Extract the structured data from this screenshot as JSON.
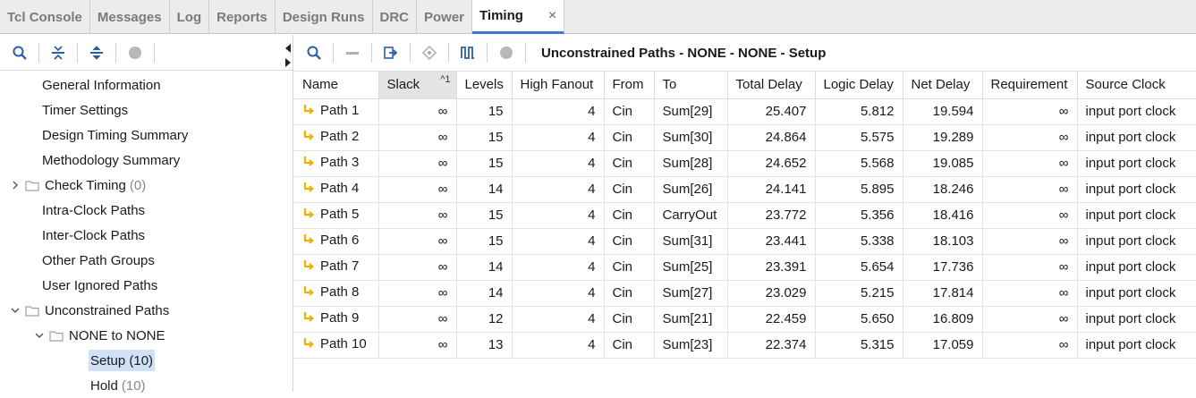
{
  "tabs": [
    {
      "label": "Tcl Console"
    },
    {
      "label": "Messages"
    },
    {
      "label": "Log"
    },
    {
      "label": "Reports"
    },
    {
      "label": "Design Runs"
    },
    {
      "label": "DRC"
    },
    {
      "label": "Power"
    },
    {
      "label": "Timing",
      "close": "×"
    }
  ],
  "tree": {
    "general_information": "General Information",
    "timer_settings": "Timer Settings",
    "design_timing_summary": "Design Timing Summary",
    "methodology_summary": "Methodology Summary",
    "check_timing": "Check Timing",
    "check_timing_count": "(0)",
    "intra_clock": "Intra-Clock Paths",
    "inter_clock": "Inter-Clock Paths",
    "other_groups": "Other Path Groups",
    "user_ignored": "User Ignored Paths",
    "unconstrained": "Unconstrained Paths",
    "none_to_none": "NONE to NONE",
    "setup": "Setup (10)",
    "hold": "Hold",
    "hold_count": "(10)"
  },
  "panel_title": "Unconstrained Paths - NONE - NONE - Setup",
  "columns": {
    "name": "Name",
    "slack": "Slack",
    "slack_sort": "^1",
    "levels": "Levels",
    "fanout": "High Fanout",
    "from": "From",
    "to": "To",
    "total": "Total Delay",
    "logic": "Logic Delay",
    "net": "Net Delay",
    "req": "Requirement",
    "src": "Source Clock"
  },
  "rows": [
    {
      "name": "Path 1",
      "slack": "∞",
      "levels": "15",
      "fanout": "4",
      "from": "Cin",
      "to": "Sum[29]",
      "total": "25.407",
      "logic": "5.812",
      "net": "19.594",
      "req": "∞",
      "src": "input port clock"
    },
    {
      "name": "Path 2",
      "slack": "∞",
      "levels": "15",
      "fanout": "4",
      "from": "Cin",
      "to": "Sum[30]",
      "total": "24.864",
      "logic": "5.575",
      "net": "19.289",
      "req": "∞",
      "src": "input port clock"
    },
    {
      "name": "Path 3",
      "slack": "∞",
      "levels": "15",
      "fanout": "4",
      "from": "Cin",
      "to": "Sum[28]",
      "total": "24.652",
      "logic": "5.568",
      "net": "19.085",
      "req": "∞",
      "src": "input port clock"
    },
    {
      "name": "Path 4",
      "slack": "∞",
      "levels": "14",
      "fanout": "4",
      "from": "Cin",
      "to": "Sum[26]",
      "total": "24.141",
      "logic": "5.895",
      "net": "18.246",
      "req": "∞",
      "src": "input port clock"
    },
    {
      "name": "Path 5",
      "slack": "∞",
      "levels": "15",
      "fanout": "4",
      "from": "Cin",
      "to": "CarryOut",
      "total": "23.772",
      "logic": "5.356",
      "net": "18.416",
      "req": "∞",
      "src": "input port clock"
    },
    {
      "name": "Path 6",
      "slack": "∞",
      "levels": "15",
      "fanout": "4",
      "from": "Cin",
      "to": "Sum[31]",
      "total": "23.441",
      "logic": "5.338",
      "net": "18.103",
      "req": "∞",
      "src": "input port clock"
    },
    {
      "name": "Path 7",
      "slack": "∞",
      "levels": "14",
      "fanout": "4",
      "from": "Cin",
      "to": "Sum[25]",
      "total": "23.391",
      "logic": "5.654",
      "net": "17.736",
      "req": "∞",
      "src": "input port clock"
    },
    {
      "name": "Path 8",
      "slack": "∞",
      "levels": "14",
      "fanout": "4",
      "from": "Cin",
      "to": "Sum[27]",
      "total": "23.029",
      "logic": "5.215",
      "net": "17.814",
      "req": "∞",
      "src": "input port clock"
    },
    {
      "name": "Path 9",
      "slack": "∞",
      "levels": "12",
      "fanout": "4",
      "from": "Cin",
      "to": "Sum[21]",
      "total": "22.459",
      "logic": "5.650",
      "net": "16.809",
      "req": "∞",
      "src": "input port clock"
    },
    {
      "name": "Path 10",
      "slack": "∞",
      "levels": "13",
      "fanout": "4",
      "from": "Cin",
      "to": "Sum[23]",
      "total": "22.374",
      "logic": "5.315",
      "net": "17.059",
      "req": "∞",
      "src": "input port clock"
    }
  ],
  "colors": {
    "accent": "#3b7bd6",
    "path_icon": "#e8b400",
    "selection": "#cfe0f7"
  }
}
